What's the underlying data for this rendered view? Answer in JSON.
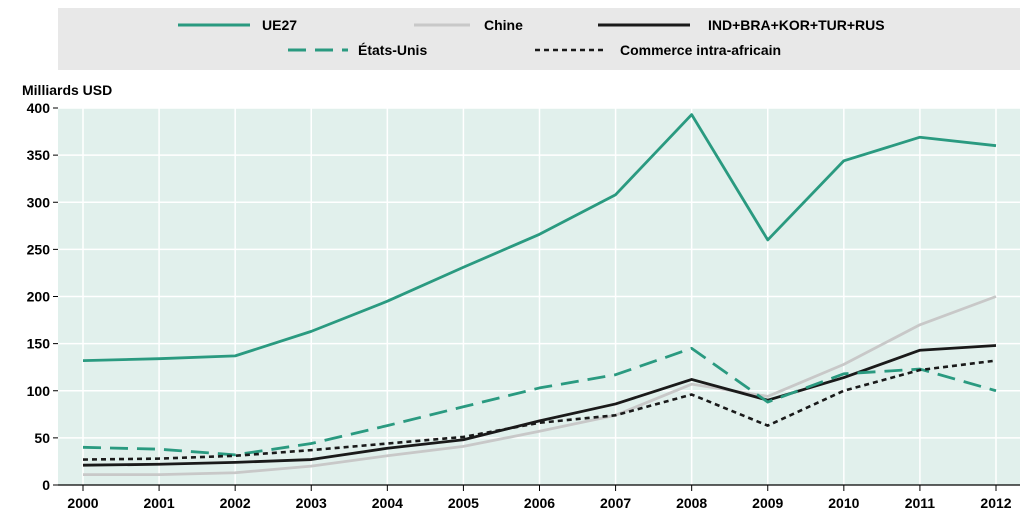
{
  "chart_data": {
    "type": "line",
    "title": "",
    "xlabel": "",
    "ylabel": "Milliards USD",
    "ylim": [
      0,
      400
    ],
    "yticks": [
      0,
      50,
      100,
      150,
      200,
      250,
      300,
      350,
      400
    ],
    "grid": true,
    "legend_position": "top",
    "x": [
      "2000",
      "2001",
      "2002",
      "2003",
      "2004",
      "2005",
      "2006",
      "2007",
      "2008",
      "2009",
      "2010",
      "2011",
      "2012"
    ],
    "series": [
      {
        "name": "UE27",
        "color": "#2a9a80",
        "dash": "solid",
        "values": [
          132,
          134,
          137,
          163,
          195,
          231,
          266,
          308,
          393,
          260,
          344,
          369,
          360
        ]
      },
      {
        "name": "Chine",
        "color": "#c8c8c8",
        "dash": "solid",
        "values": [
          11,
          11,
          13,
          20,
          31,
          41,
          57,
          74,
          107,
          94,
          128,
          170,
          200
        ]
      },
      {
        "name": "IND+BRA+KOR+TUR+RUS",
        "color": "#1a1a1a",
        "dash": "solid",
        "values": [
          21,
          22,
          24,
          27,
          39,
          48,
          68,
          86,
          112,
          90,
          114,
          143,
          148
        ]
      },
      {
        "name": "États-Unis",
        "color": "#2a9a80",
        "dash": "dashed",
        "values": [
          40,
          38,
          32,
          44,
          63,
          83,
          103,
          117,
          145,
          88,
          118,
          123,
          100
        ]
      },
      {
        "name": "Commerce intra-africain",
        "color": "#1a1a1a",
        "dash": "dotted",
        "values": [
          27,
          28,
          31,
          37,
          44,
          51,
          66,
          74,
          96,
          63,
          100,
          122,
          132
        ]
      }
    ]
  }
}
